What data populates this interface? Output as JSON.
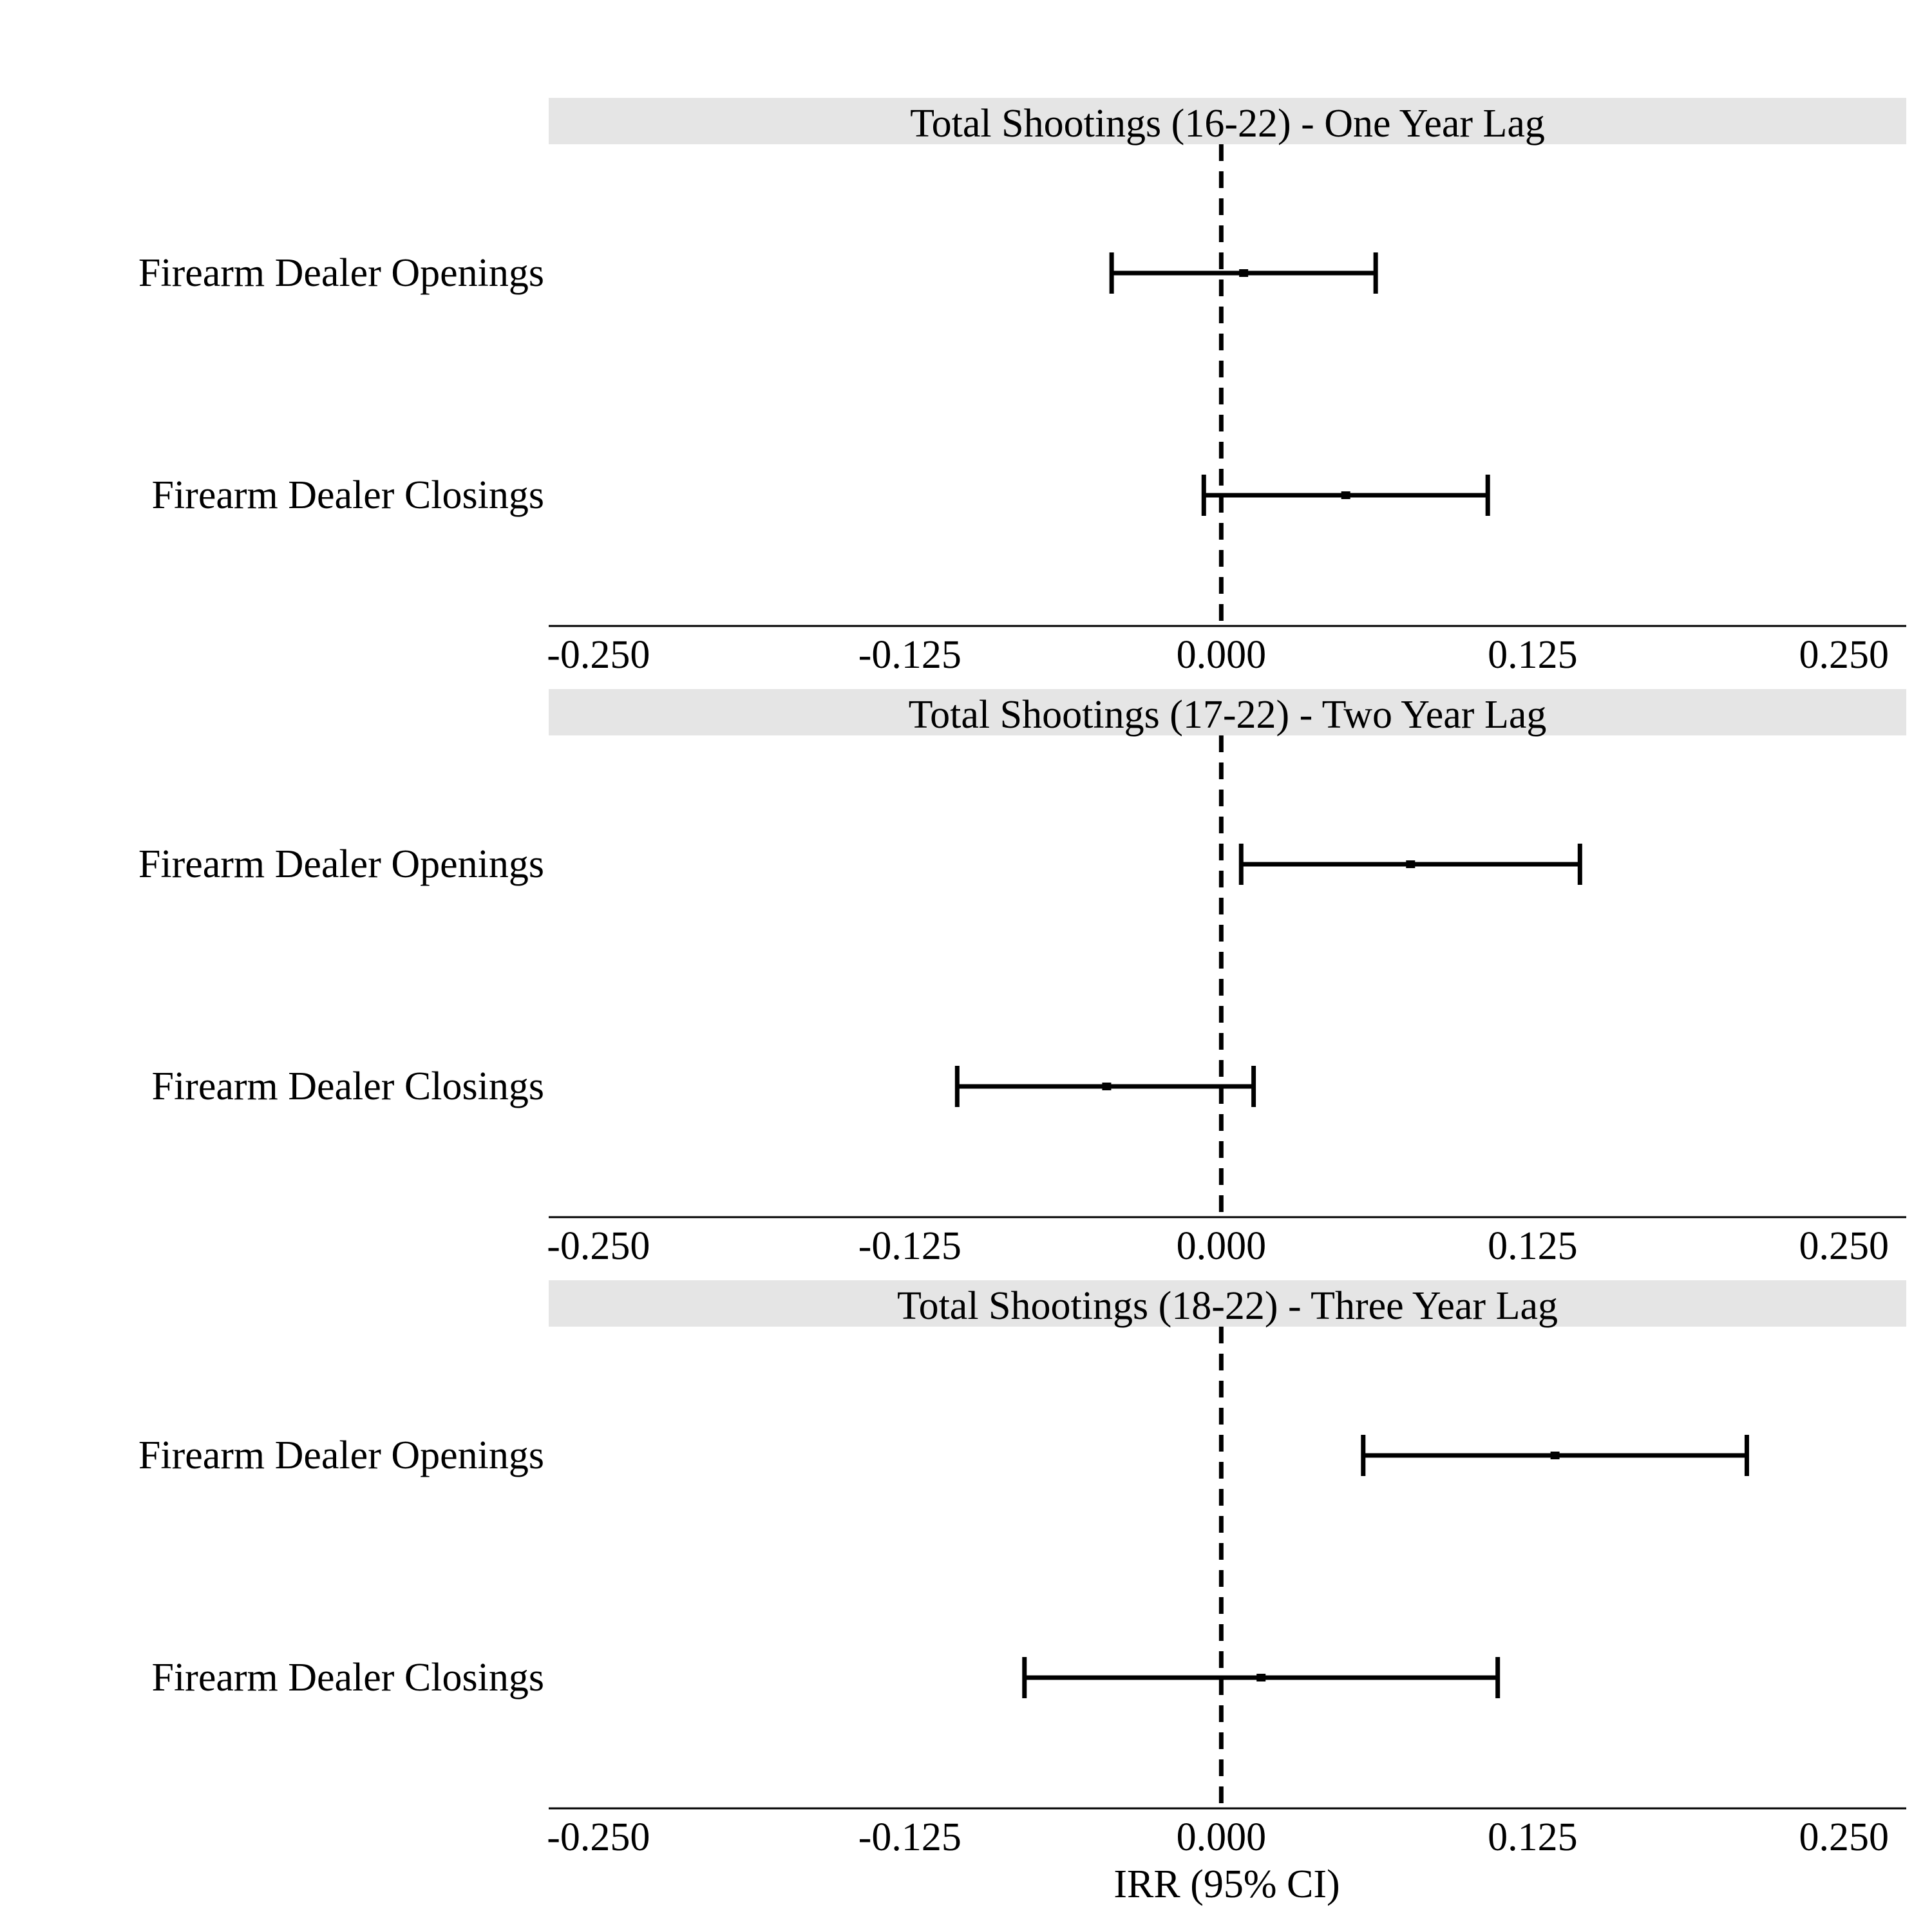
{
  "chart_data": {
    "type": "forest",
    "xlabel": "IRR (95% CI)",
    "x_ticks": [
      "-0.250",
      "-0.125",
      "0.000",
      "0.125",
      "0.250"
    ],
    "x_tick_values": [
      -0.25,
      -0.125,
      0,
      0.125,
      0.25
    ],
    "xlim": [
      -0.27,
      0.275
    ],
    "reference_line": 0,
    "panels": [
      {
        "title": "Total Shootings (16-22) - One Year Lag",
        "rows": [
          {
            "label": "Firearm Dealer Openings",
            "estimate": 0.009,
            "lower": -0.044,
            "upper": 0.062
          },
          {
            "label": "Firearm Dealer Closings",
            "estimate": 0.05,
            "lower": -0.007,
            "upper": 0.107
          }
        ]
      },
      {
        "title": "Total Shootings (17-22) - Two Year Lag",
        "rows": [
          {
            "label": "Firearm Dealer Openings",
            "estimate": 0.076,
            "lower": 0.008,
            "upper": 0.144
          },
          {
            "label": "Firearm Dealer Closings",
            "estimate": -0.046,
            "lower": -0.106,
            "upper": 0.013
          }
        ]
      },
      {
        "title": "Total Shootings (18-22) - Three Year Lag",
        "rows": [
          {
            "label": "Firearm Dealer Openings",
            "estimate": 0.134,
            "lower": 0.057,
            "upper": 0.211
          },
          {
            "label": "Firearm Dealer Closings",
            "estimate": 0.016,
            "lower": -0.079,
            "upper": 0.111
          }
        ]
      }
    ],
    "colors": {
      "strip": "#e5e5e5",
      "line": "#000000"
    }
  }
}
